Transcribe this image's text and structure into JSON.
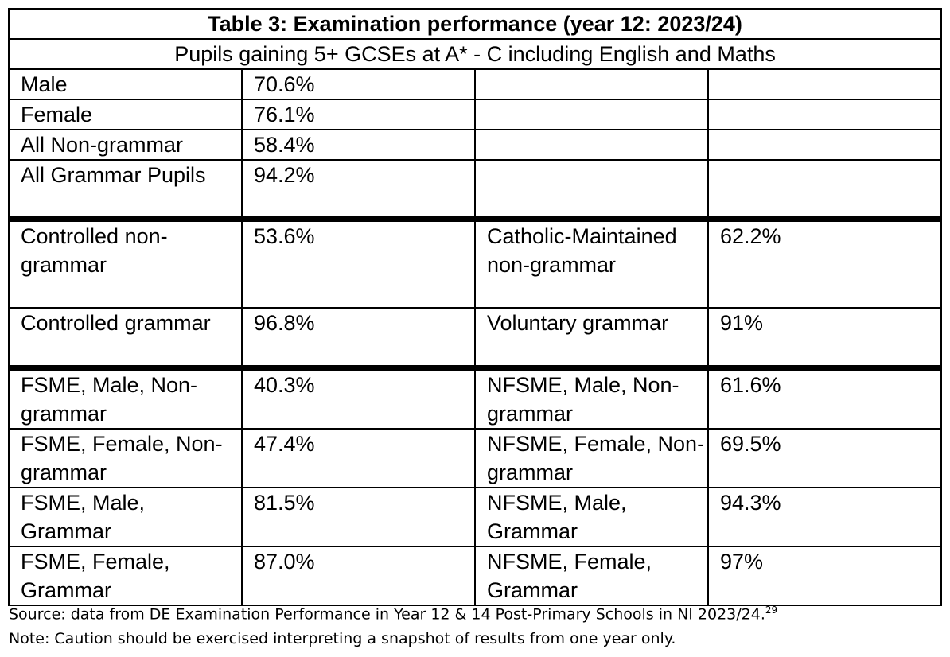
{
  "table": {
    "title": "Table 3: Examination performance (year 12: 2023/24)",
    "subtitle": "Pupils gaining  5+ GCSEs at A* - C including English and Maths",
    "rows": [
      {
        "cells": [
          "Male",
          "70.6%",
          "",
          ""
        ]
      },
      {
        "cells": [
          "Female",
          "76.1%",
          "",
          ""
        ]
      },
      {
        "cells": [
          "All Non-grammar",
          "58.4%",
          "",
          ""
        ]
      },
      {
        "cells": [
          "All Grammar Pupils",
          "94.2%",
          "",
          ""
        ]
      },
      {
        "cells": [
          "Controlled non-grammar",
          "53.6%",
          "Catholic-Maintained non-grammar",
          "62.2%"
        ]
      },
      {
        "cells": [
          "Controlled grammar",
          "96.8%",
          "Voluntary grammar",
          "91%"
        ]
      },
      {
        "cells": [
          "FSME, Male, Non-grammar",
          "40.3%",
          "NFSME, Male, Non-grammar",
          "61.6%"
        ]
      },
      {
        "cells": [
          "FSME, Female, Non-grammar",
          "47.4%",
          "NFSME, Female, Non-grammar",
          "69.5%"
        ]
      },
      {
        "cells": [
          "FSME, Male, Grammar",
          "81.5%",
          "NFSME, Male, Grammar",
          "94.3%"
        ]
      },
      {
        "cells": [
          "FSME, Female, Grammar",
          "87.0%",
          "NFSME, Female, Grammar",
          "97%"
        ]
      }
    ]
  },
  "source": "Source: data from DE Examination Performance in Year 12 & 14 Post-Primary Schools in NI 2023/24.",
  "source_footnote": "29",
  "note": "Note: Caution should be exercised interpreting a snapshot of results from one year only."
}
